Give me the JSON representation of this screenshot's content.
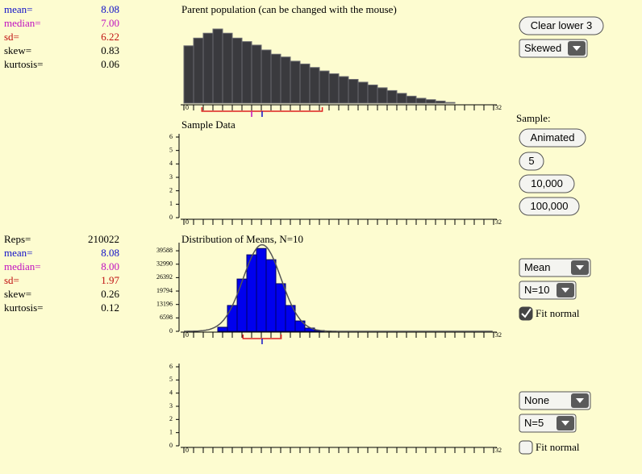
{
  "stats_parent": [
    {
      "label": "mean=",
      "value": "8.08",
      "color": "#1010c8"
    },
    {
      "label": "median=",
      "value": "7.00",
      "color": "#c010c0"
    },
    {
      "label": "sd=",
      "value": "6.22",
      "color": "#c01010"
    },
    {
      "label": "skew=",
      "value": "0.83",
      "color": "#000000"
    },
    {
      "label": "kurtosis=",
      "value": "0.06",
      "color": "#000000"
    }
  ],
  "stats_means": [
    {
      "label": "Reps=",
      "value": "210022",
      "color": "#000000"
    },
    {
      "label": "mean=",
      "value": "8.08",
      "color": "#1010c8"
    },
    {
      "label": "median=",
      "value": "8.00",
      "color": "#c010c0"
    },
    {
      "label": "sd=",
      "value": "1.97",
      "color": "#c01010"
    },
    {
      "label": "skew=",
      "value": "0.26",
      "color": "#000000"
    },
    {
      "label": "kurtosis=",
      "value": "0.12",
      "color": "#000000"
    }
  ],
  "parent": {
    "title": "Parent population (can be changed with the mouse)",
    "bins": [
      0,
      1,
      2,
      3,
      4,
      5,
      6,
      7,
      8,
      9,
      10,
      11,
      12,
      13,
      14,
      15,
      16,
      17,
      18,
      19,
      20,
      21,
      22,
      23,
      24,
      25,
      26,
      27,
      28
    ],
    "values": [
      82,
      93,
      100,
      106,
      100,
      93,
      88,
      83,
      76,
      70,
      66,
      60,
      56,
      51,
      46,
      42,
      38,
      34,
      30,
      26,
      22,
      18,
      14,
      10,
      7,
      5,
      3,
      1
    ],
    "color": "#3a3a3e",
    "xlim": [
      0,
      32
    ],
    "xticks": [
      0,
      32
    ]
  },
  "sample_top": {
    "title": "Sample Data",
    "ylim": [
      0,
      6
    ],
    "yticks": [
      0,
      1,
      2,
      3,
      4,
      5,
      6
    ],
    "xlim": [
      0,
      32
    ],
    "xticks": [
      0,
      32
    ]
  },
  "means": {
    "title": "Distribution of Means, N=10",
    "bins": [
      3.5,
      4.5,
      5.5,
      6.5,
      7.5,
      8.5,
      9.5,
      10.5,
      11.5,
      12.5,
      13.5,
      14.5
    ],
    "values": [
      2000,
      12700,
      25700,
      37600,
      40700,
      35200,
      23400,
      12700,
      5100,
      1600,
      400
    ],
    "color": "#0000ee",
    "ylim": [
      0,
      42000
    ],
    "yticks": [
      0,
      6598,
      13196,
      19794,
      26392,
      32990,
      39588
    ],
    "xlim": [
      0,
      32
    ],
    "xticks": [
      0,
      32
    ]
  },
  "sample_bottom": {
    "ylim": [
      0,
      6
    ],
    "yticks": [
      0,
      1,
      2,
      3,
      4,
      5,
      6
    ],
    "xlim": [
      0,
      32
    ],
    "xticks": [
      0,
      32
    ]
  },
  "controls": {
    "clear_button": "Clear lower 3",
    "shape_select": "Skewed",
    "sample_label": "Sample:",
    "sample_buttons": [
      "Animated",
      "5",
      "10,000",
      "100,000"
    ],
    "stat_select_top": "Mean",
    "n_select_top": "N=10",
    "fit_top": {
      "label": "Fit normal",
      "checked": true
    },
    "stat_select_bottom": "None",
    "n_select_bottom": "N=5",
    "fit_bottom": {
      "label": "Fit normal",
      "checked": false
    }
  }
}
